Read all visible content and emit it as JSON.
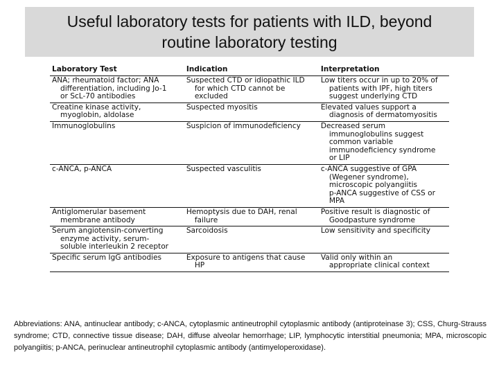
{
  "header": {
    "title": [
      "Useful laboratory tests for patients with ILD, beyond",
      "routine laboratory testing"
    ]
  },
  "table": {
    "header": [
      "Laboratory Test",
      "Indication",
      "Interpretation"
    ],
    "rows": [
      [
        [
          "ANA; rheumatoid factor; ANA",
          "differentiation, including Jo-1",
          "or ScL-70 antibodies"
        ],
        [
          "Suspected CTD or idiopathic ILD",
          "for which CTD cannot be",
          "excluded"
        ],
        [
          "Low titers occur in up to 20% of",
          "patients with IPF, high titers",
          "suggest underlying CTD"
        ]
      ],
      [
        [
          "Creatine kinase activity,",
          "myoglobin, aldolase"
        ],
        [
          "Suspected myositis"
        ],
        [
          "Elevated values support a",
          "diagnosis of dermatomyositis"
        ]
      ],
      [
        [
          "Immunoglobulins"
        ],
        [
          "Suspicion of immunodeficiency"
        ],
        [
          "Decreased serum",
          "immunoglobulins suggest",
          "common variable",
          "immunodeficiency syndrome",
          "or LIP"
        ]
      ],
      [
        [
          "c-ANCA, p-ANCA"
        ],
        [
          "Suspected vasculitis"
        ],
        [
          "c-ANCA suggestive of GPA",
          "(Wegener syndrome),",
          "microscopic polyangiitis",
          "p-ANCA suggestive of CSS or",
          "MPA"
        ]
      ],
      [
        [
          "Antiglomerular basement",
          "membrane antibody"
        ],
        [
          "Hemoptysis due to DAH, renal",
          "failure"
        ],
        [
          "Positive result is diagnostic of",
          "Goodpasture syndrome"
        ]
      ],
      [
        [
          "Serum angiotensin-converting",
          "enzyme activity, serum-",
          "soluble interleukin 2 receptor"
        ],
        [
          "Sarcoidosis"
        ],
        [
          "Low sensitivity and specificity"
        ]
      ],
      [
        [
          "Specific serum IgG antibodies"
        ],
        [
          "Exposure to antigens that cause",
          "HP"
        ],
        [
          "Valid only within an",
          "appropriate clinical context"
        ]
      ]
    ]
  },
  "footnote": "Abbreviations: ANA, antinuclear antibody; c-ANCA, cytoplasmic antineutrophil cytoplasmic antibody (antiproteinase 3); CSS, Churg-Strauss syndrome; CTD, connective tissue disease; DAH, diffuse alveolar hemorrhage; LIP, lymphocytic interstitial pneumonia; MPA, microscopic polyangiitis; p-ANCA, perinuclear antineutrophil cytoplasmic antibody (antimyeloperoxidase)."
}
